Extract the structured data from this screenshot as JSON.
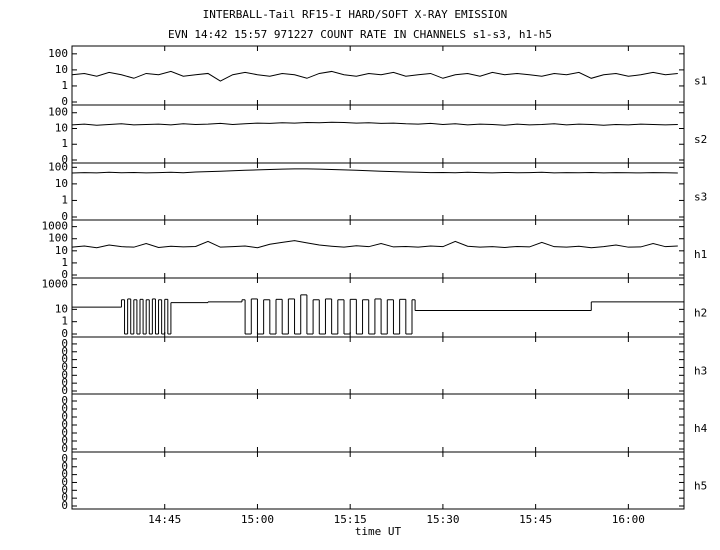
{
  "chart_data": [
    {
      "type": "line",
      "title": "INTERBALL-Tail RF15-I HARD/SOFT X-RAY EMISSION",
      "subtitle": "EVN 14:42 15:57 971227  COUNT RATE IN CHANNELS s1-s3, h1-h5",
      "name": "s1",
      "yscale": "log",
      "color": "#000000",
      "xlim": [
        870,
        969
      ],
      "ylim": [
        0,
        200
      ],
      "yticks": [
        100,
        10,
        1,
        0
      ],
      "x": [
        870,
        872,
        874,
        876,
        878,
        880,
        882,
        884,
        886,
        888,
        890,
        892,
        894,
        896,
        898,
        900,
        902,
        904,
        906,
        908,
        910,
        912,
        914,
        916,
        918,
        920,
        922,
        924,
        926,
        928,
        930,
        932,
        934,
        936,
        938,
        940,
        942,
        944,
        946,
        948,
        950,
        952,
        954,
        956,
        958,
        960,
        962,
        964,
        966,
        968
      ],
      "values": [
        5,
        6,
        4,
        7,
        5,
        3,
        6,
        5,
        8,
        4,
        5,
        6,
        2,
        5,
        7,
        5,
        4,
        6,
        5,
        3,
        6,
        8,
        5,
        4,
        6,
        5,
        7,
        4,
        5,
        6,
        3,
        5,
        6,
        4,
        7,
        5,
        6,
        5,
        4,
        6,
        5,
        7,
        3,
        5,
        6,
        4,
        5,
        7,
        5,
        6
      ]
    },
    {
      "type": "line",
      "name": "s2",
      "yscale": "log",
      "color": "#000000",
      "xlim": [
        870,
        969
      ],
      "ylim": [
        0,
        200
      ],
      "yticks": [
        100,
        10,
        1,
        0
      ],
      "x": [
        870,
        872,
        874,
        876,
        878,
        880,
        882,
        884,
        886,
        888,
        890,
        892,
        894,
        896,
        898,
        900,
        902,
        904,
        906,
        908,
        910,
        912,
        914,
        916,
        918,
        920,
        922,
        924,
        926,
        928,
        930,
        932,
        934,
        936,
        938,
        940,
        942,
        944,
        946,
        948,
        950,
        952,
        954,
        956,
        958,
        960,
        962,
        964,
        966,
        968
      ],
      "values": [
        17,
        19,
        16,
        18,
        20,
        17,
        18,
        19,
        17,
        20,
        18,
        19,
        21,
        18,
        20,
        22,
        21,
        23,
        22,
        24,
        23,
        25,
        24,
        22,
        23,
        21,
        22,
        20,
        19,
        21,
        18,
        20,
        17,
        19,
        18,
        16,
        19,
        17,
        18,
        20,
        17,
        19,
        18,
        16,
        18,
        17,
        19,
        18,
        17,
        18
      ]
    },
    {
      "type": "line",
      "name": "s3",
      "yscale": "log",
      "color": "#000000",
      "xlim": [
        870,
        969
      ],
      "ylim": [
        0,
        120
      ],
      "yticks": [
        100,
        10,
        1,
        0
      ],
      "x": [
        870,
        872,
        874,
        876,
        878,
        880,
        882,
        884,
        886,
        888,
        890,
        892,
        894,
        896,
        898,
        900,
        902,
        904,
        906,
        908,
        910,
        912,
        914,
        916,
        918,
        920,
        922,
        924,
        926,
        928,
        930,
        932,
        934,
        936,
        938,
        940,
        942,
        944,
        946,
        948,
        950,
        952,
        954,
        956,
        958,
        960,
        962,
        964,
        966,
        968
      ],
      "values": [
        45,
        48,
        46,
        50,
        47,
        49,
        46,
        48,
        50,
        47,
        52,
        55,
        58,
        62,
        66,
        70,
        74,
        78,
        80,
        80,
        78,
        74,
        70,
        66,
        62,
        58,
        55,
        52,
        50,
        48,
        49,
        47,
        50,
        48,
        46,
        49,
        47,
        48,
        50,
        46,
        48,
        47,
        49,
        46,
        48,
        47,
        46,
        48,
        47,
        45
      ]
    },
    {
      "type": "line",
      "name": "h1",
      "yscale": "log",
      "color": "#000000",
      "xlim": [
        870,
        969
      ],
      "ylim": [
        0,
        2000
      ],
      "yticks": [
        1000,
        100,
        10,
        1,
        0
      ],
      "x": [
        870,
        872,
        874,
        876,
        878,
        880,
        882,
        884,
        886,
        888,
        890,
        892,
        894,
        896,
        898,
        900,
        902,
        904,
        906,
        908,
        910,
        912,
        914,
        916,
        918,
        920,
        922,
        924,
        926,
        928,
        930,
        932,
        934,
        936,
        938,
        940,
        942,
        944,
        946,
        948,
        950,
        952,
        954,
        956,
        958,
        960,
        962,
        964,
        966,
        968
      ],
      "values": [
        20,
        25,
        18,
        30,
        22,
        20,
        40,
        19,
        24,
        21,
        23,
        60,
        20,
        22,
        25,
        18,
        35,
        50,
        70,
        45,
        30,
        24,
        20,
        26,
        22,
        40,
        21,
        23,
        20,
        25,
        22,
        60,
        24,
        20,
        22,
        19,
        23,
        21,
        50,
        22,
        20,
        24,
        18,
        22,
        30,
        20,
        21,
        40,
        22,
        25
      ]
    },
    {
      "type": "step",
      "name": "h2",
      "yscale": "log",
      "color": "#000000",
      "xlim": [
        870,
        969
      ],
      "ylim": [
        0,
        2000
      ],
      "yticks": [
        1000,
        10,
        1,
        0
      ],
      "x": [
        870,
        878,
        878.5,
        879,
        879.5,
        880,
        880.5,
        881,
        881.5,
        882,
        882.5,
        883,
        883.5,
        884,
        884.5,
        885,
        885.5,
        886,
        892,
        897.5,
        898,
        899,
        900,
        901,
        902,
        903,
        904,
        905,
        906,
        907,
        908,
        909,
        910,
        911,
        912,
        913,
        914,
        915,
        916,
        917,
        918,
        919,
        920,
        921,
        922,
        923,
        924,
        925,
        925.5,
        954,
        969
      ],
      "values": [
        15,
        60,
        0,
        70,
        0,
        60,
        0,
        65,
        0,
        60,
        0,
        70,
        0,
        60,
        0,
        65,
        0,
        35,
        40,
        60,
        0,
        70,
        0,
        60,
        0,
        65,
        0,
        70,
        0,
        150,
        0,
        60,
        0,
        70,
        0,
        60,
        0,
        65,
        0,
        60,
        0,
        70,
        0,
        60,
        0,
        65,
        0,
        60,
        8,
        40,
        40
      ]
    },
    {
      "type": "empty",
      "name": "h3",
      "xlim": [
        870,
        969
      ],
      "ylim": [
        0,
        0.65
      ],
      "yticks": [
        {
          "value": 0,
          "label": "0"
        },
        {
          "value": 0.1,
          "label": "0"
        },
        {
          "value": 0.2,
          "label": "0"
        },
        {
          "value": 0.3,
          "label": "0"
        },
        {
          "value": 0.4,
          "label": "0"
        },
        {
          "value": 0.5,
          "label": "0"
        },
        {
          "value": 0.6,
          "label": "0"
        }
      ]
    },
    {
      "type": "empty",
      "name": "h4",
      "xlim": [
        870,
        969
      ],
      "ylim": [
        0,
        0.65
      ],
      "yticks": [
        {
          "value": 0,
          "label": "0"
        },
        {
          "value": 0.1,
          "label": "0"
        },
        {
          "value": 0.2,
          "label": "0"
        },
        {
          "value": 0.3,
          "label": "0"
        },
        {
          "value": 0.4,
          "label": "0"
        },
        {
          "value": 0.5,
          "label": "0"
        },
        {
          "value": 0.6,
          "label": "0"
        }
      ]
    },
    {
      "type": "empty",
      "name": "h5",
      "xlabel": "time UT",
      "xlim": [
        870,
        969
      ],
      "ylim": [
        0,
        0.65
      ],
      "yticks": [
        {
          "value": 0,
          "label": "0"
        },
        {
          "value": 0.1,
          "label": "0"
        },
        {
          "value": 0.2,
          "label": "0"
        },
        {
          "value": 0.3,
          "label": "0"
        },
        {
          "value": 0.4,
          "label": "0"
        },
        {
          "value": 0.5,
          "label": "0"
        },
        {
          "value": 0.6,
          "label": "0"
        }
      ],
      "xticks": [
        {
          "value": 885,
          "label": "14:45"
        },
        {
          "value": 900,
          "label": "15:00"
        },
        {
          "value": 915,
          "label": "15:15"
        },
        {
          "value": 930,
          "label": "15:30"
        },
        {
          "value": 945,
          "label": "15:45"
        },
        {
          "value": 960,
          "label": "16:00"
        }
      ]
    }
  ]
}
